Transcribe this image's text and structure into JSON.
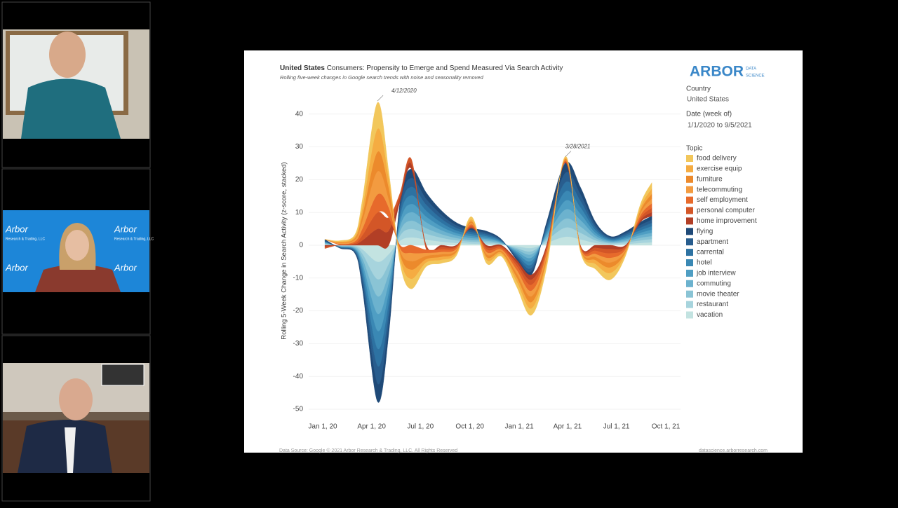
{
  "banner": {
    "brand": "Arbor",
    "tagline": "Research & Trading, LLC"
  },
  "panel": {
    "logo": "ARBOR",
    "logo_sub_1": "DATA",
    "logo_sub_2": "SCIENCE",
    "country_label": "Country",
    "country": "United States",
    "date_label": "Date (week of)",
    "date_range": "1/1/2020 to 9/5/2021",
    "topic_label": "Topic",
    "footer_left": "Data Source: Google © 2021 Arbor Research & Trading, LLC. All Rights Reserved",
    "footer_right": "datascience.arborresearch.com"
  },
  "chart_data": {
    "type": "stream",
    "title_prefix": "United States",
    "title": "Consumers: Propensity to Emerge and Spend Measured Via Search Activity",
    "subtitle": "Rolling five-week changes in Google search trends with noise and seasonality removed",
    "y_label": "Rolling 5-Week Change in Search Activity (z-score, stacked)",
    "x": [
      "2020-01-05",
      "2020-02-02",
      "2020-03-01",
      "2020-03-15",
      "2020-04-12",
      "2020-05-03",
      "2020-05-24",
      "2020-06-14",
      "2020-07-12",
      "2020-08-09",
      "2020-09-06",
      "2020-10-04",
      "2020-11-01",
      "2020-11-29",
      "2020-12-27",
      "2021-01-24",
      "2021-02-21",
      "2021-03-28",
      "2021-04-25",
      "2021-05-23",
      "2021-06-20",
      "2021-07-18",
      "2021-08-15",
      "2021-09-05"
    ],
    "xlim": [
      "2020-01-01",
      "2021-10-01"
    ],
    "xticks": [
      {
        "value": "2020-01-01",
        "label": "Jan 1, 20"
      },
      {
        "value": "2020-04-01",
        "label": "Apr 1, 20"
      },
      {
        "value": "2020-07-01",
        "label": "Jul 1, 20"
      },
      {
        "value": "2020-10-01",
        "label": "Oct 1, 20"
      },
      {
        "value": "2021-01-01",
        "label": "Jan 1, 21"
      },
      {
        "value": "2021-04-01",
        "label": "Apr 1, 21"
      },
      {
        "value": "2021-07-01",
        "label": "Jul 1, 21"
      },
      {
        "value": "2021-10-01",
        "label": "Oct 1, 21"
      }
    ],
    "ylim": [
      -52,
      46
    ],
    "yticks": [
      40,
      30,
      20,
      10,
      0,
      -10,
      -20,
      -30,
      -40,
      -50
    ],
    "grid": true,
    "legend_title": "Topic",
    "annotations": [
      {
        "label": "4/12/2020",
        "x": "2020-04-12",
        "y": 44
      },
      {
        "label": "3/28/2021",
        "x": "2021-03-28",
        "y": 27
      }
    ],
    "series": [
      {
        "name": "food delivery",
        "color": "#f2c75c",
        "values": [
          0,
          0.3,
          0.6,
          2.5,
          8,
          2,
          -1.5,
          -3,
          -1.2,
          -1,
          -0.6,
          0.8,
          -1,
          -0.6,
          -1.5,
          -2,
          -1.2,
          0.4,
          -0.4,
          -1.5,
          -2,
          -0.6,
          1,
          1.8
        ]
      },
      {
        "name": "exercise equip",
        "color": "#f5ac42",
        "values": [
          0,
          0.2,
          0.5,
          2.2,
          7,
          3,
          -1.2,
          -2.8,
          -1,
          -0.9,
          -0.5,
          0.6,
          -0.9,
          -0.5,
          -1.3,
          -1.9,
          -1,
          0.3,
          -0.3,
          -1.2,
          -1.7,
          -0.5,
          0.9,
          1.6
        ]
      },
      {
        "name": "furniture",
        "color": "#ec8a2c",
        "values": [
          0,
          0.2,
          0.4,
          1.8,
          6,
          3.5,
          -1,
          -2.6,
          -1,
          -0.8,
          -0.5,
          0.5,
          -0.8,
          -0.5,
          -1.2,
          -1.8,
          -1,
          0.3,
          -0.3,
          -1,
          -1.5,
          -0.5,
          0.8,
          1.5
        ]
      },
      {
        "name": "telecommuting",
        "color": "#f39b40",
        "values": [
          0,
          0.3,
          0.6,
          2.4,
          7,
          2.5,
          -0.8,
          -2.5,
          -0.9,
          -0.7,
          -0.4,
          0.4,
          -0.7,
          -0.4,
          -1.1,
          -1.7,
          -0.9,
          0.2,
          -0.2,
          -0.9,
          -1.4,
          -0.4,
          0.7,
          1.4
        ]
      },
      {
        "name": "self employment",
        "color": "#e76a2b",
        "values": [
          0,
          0.2,
          0.5,
          2,
          5.5,
          3,
          -1,
          -2.4,
          -1,
          -0.8,
          -0.5,
          0.5,
          -0.8,
          -0.5,
          -1.2,
          -1.8,
          -1,
          0.3,
          -0.3,
          -1,
          -1.4,
          -0.5,
          0.8,
          1.4
        ]
      },
      {
        "name": "personal computer",
        "color": "#d35627",
        "values": [
          -0.5,
          0.1,
          0.4,
          1.6,
          5,
          4,
          1,
          1.5,
          -0.8,
          -0.7,
          -0.4,
          0.4,
          -0.7,
          -0.5,
          -1,
          -1.6,
          -0.9,
          0.3,
          -0.3,
          -0.9,
          -1.3,
          -0.4,
          0.7,
          1.3
        ]
      },
      {
        "name": "home improvement",
        "color": "#b23f26",
        "values": [
          -0.5,
          0.1,
          0.3,
          1.5,
          5,
          4.5,
          1.5,
          1.5,
          -0.6,
          -0.6,
          -0.3,
          0.3,
          -0.6,
          -0.4,
          -0.9,
          -1.5,
          -0.8,
          0.2,
          -0.2,
          -0.8,
          -1.2,
          -0.4,
          0.6,
          1.2
        ]
      },
      {
        "name": "flying",
        "color": "#1f4a78",
        "values": [
          0.3,
          -0.1,
          -0.3,
          -1.6,
          -5.5,
          -3.2,
          1.6,
          2.8,
          1.9,
          1.3,
          0.8,
          0.6,
          0.5,
          0.2,
          -0.6,
          -1.1,
          0.9,
          3,
          2.1,
          0.9,
          0.3,
          0.5,
          0.9,
          1.1
        ]
      },
      {
        "name": "apartment",
        "color": "#285d8e",
        "values": [
          0.3,
          -0.1,
          -0.3,
          -1.5,
          -5.4,
          -3,
          1.5,
          2.7,
          1.8,
          1.2,
          0.8,
          0.6,
          0.5,
          0.2,
          -0.5,
          -1,
          0.8,
          2.9,
          2,
          0.8,
          0.3,
          0.5,
          0.8,
          1
        ]
      },
      {
        "name": "carrental",
        "color": "#2d72a2",
        "values": [
          0,
          -0.1,
          -0.3,
          -1.5,
          -5.3,
          -3,
          1.5,
          2.6,
          1.8,
          1.2,
          0.8,
          0.6,
          0.5,
          0.2,
          -0.5,
          -1,
          0.8,
          2.8,
          2,
          0.8,
          0.3,
          0.5,
          0.8,
          1
        ]
      },
      {
        "name": "hotel",
        "color": "#3a88b4",
        "values": [
          0.2,
          -0.1,
          -0.3,
          -1.6,
          -5.4,
          -3.1,
          1.6,
          2.6,
          1.8,
          1.2,
          0.8,
          0.6,
          0.5,
          0.2,
          -0.5,
          -1.1,
          0.8,
          2.8,
          2,
          0.8,
          0.3,
          0.5,
          0.8,
          1
        ]
      },
      {
        "name": "job interview",
        "color": "#4f9ec3",
        "values": [
          0.2,
          -0.1,
          -0.2,
          -1.4,
          -5.2,
          -3,
          1.4,
          2.5,
          1.7,
          1.1,
          0.7,
          0.6,
          0.4,
          0.2,
          -0.5,
          -1,
          0.7,
          2.7,
          1.9,
          0.8,
          0.3,
          0.4,
          0.7,
          1
        ]
      },
      {
        "name": "commuting",
        "color": "#6cb2ce",
        "values": [
          0.2,
          -0.1,
          -0.3,
          -1.5,
          -5.3,
          -2.9,
          1.5,
          2.6,
          1.8,
          1.2,
          0.8,
          0.6,
          0.5,
          0.2,
          -0.5,
          -1,
          0.8,
          2.8,
          2,
          0.8,
          0.3,
          0.5,
          0.8,
          1
        ]
      },
      {
        "name": "movie theater",
        "color": "#8ac4d5",
        "values": [
          0.2,
          -0.1,
          -0.3,
          -1.5,
          -5.2,
          -3,
          1.4,
          2.5,
          1.7,
          1.1,
          0.7,
          0.5,
          0.5,
          0.2,
          -0.4,
          -0.9,
          0.7,
          2.7,
          1.9,
          0.7,
          0.3,
          0.4,
          0.8,
          0.9
        ]
      },
      {
        "name": "restaurant",
        "color": "#a7d4dd",
        "values": [
          0.2,
          -0.1,
          -0.3,
          -1.4,
          -5.3,
          -3,
          1.5,
          2.6,
          1.8,
          1.2,
          0.8,
          0.6,
          0.5,
          0.2,
          -0.5,
          -1,
          0.8,
          2.8,
          2,
          0.8,
          0.3,
          0.5,
          0.8,
          1
        ]
      },
      {
        "name": "vacation",
        "color": "#c3e3e1",
        "values": [
          0.2,
          -0.1,
          -0.2,
          -1.3,
          -5.1,
          -2.8,
          1.4,
          2.4,
          1.7,
          1.1,
          0.7,
          0.5,
          0.4,
          0.2,
          -0.4,
          -0.9,
          0.7,
          2.6,
          1.8,
          0.7,
          0.3,
          0.4,
          0.7,
          0.9
        ]
      }
    ]
  }
}
